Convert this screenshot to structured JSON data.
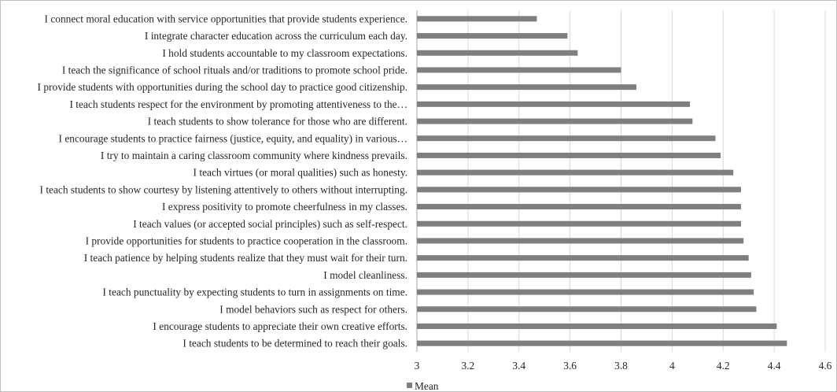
{
  "chart_data": {
    "type": "bar",
    "orientation": "horizontal",
    "categories": [
      "I connect moral education with service opportunities that provide students experience.",
      "I integrate character education across the curriculum each day.",
      "I hold students accountable to my classroom expectations.",
      "I teach the significance of school rituals and/or traditions to promote school pride.",
      "I provide students with opportunities during the school day to practice good citizenship.",
      "I teach students respect for the environment by promoting attentiveness to the…",
      "I teach students to show tolerance for those who are different.",
      "I encourage students to practice fairness (justice, equity, and equality) in various…",
      "I try to maintain a caring classroom community where kindness prevails.",
      "I teach virtues (or moral qualities) such as honesty.",
      "I teach students to show courtesy by listening attentively to others without interrupting.",
      "I express positivity to promote cheerfulness in my classes.",
      "I teach values (or accepted social principles) such as self-respect.",
      "I provide opportunities for students to practice cooperation in the classroom.",
      "I teach patience by helping students realize that they must wait for their turn.",
      "I model cleanliness.",
      "I teach punctuality by expecting students to turn in assignments on time.",
      "I model behaviors such as respect for others.",
      "I encourage students to appreciate their own creative efforts.",
      "I teach students to be determined to reach their goals."
    ],
    "series": [
      {
        "name": "Mean",
        "color": "#7f7f7f",
        "values": [
          3.47,
          3.59,
          3.63,
          3.8,
          3.86,
          4.07,
          4.08,
          4.17,
          4.19,
          4.24,
          4.27,
          4.27,
          4.27,
          4.28,
          4.3,
          4.31,
          4.32,
          4.33,
          4.41,
          4.45
        ]
      }
    ],
    "xlim": [
      3,
      4.6
    ],
    "xticks": [
      "3",
      "3.2",
      "3.4",
      "3.6",
      "3.8",
      "4",
      "4.2",
      "4.4",
      "4.6"
    ],
    "xtick_values": [
      3,
      3.2,
      3.4,
      3.6,
      3.8,
      4,
      4.2,
      4.4,
      4.6
    ],
    "grid": "vertical",
    "legend_position": "bottom",
    "legend_label": "Mean",
    "gridline_color": "#d9d9d9",
    "axis_color": "#a6a6a6"
  }
}
